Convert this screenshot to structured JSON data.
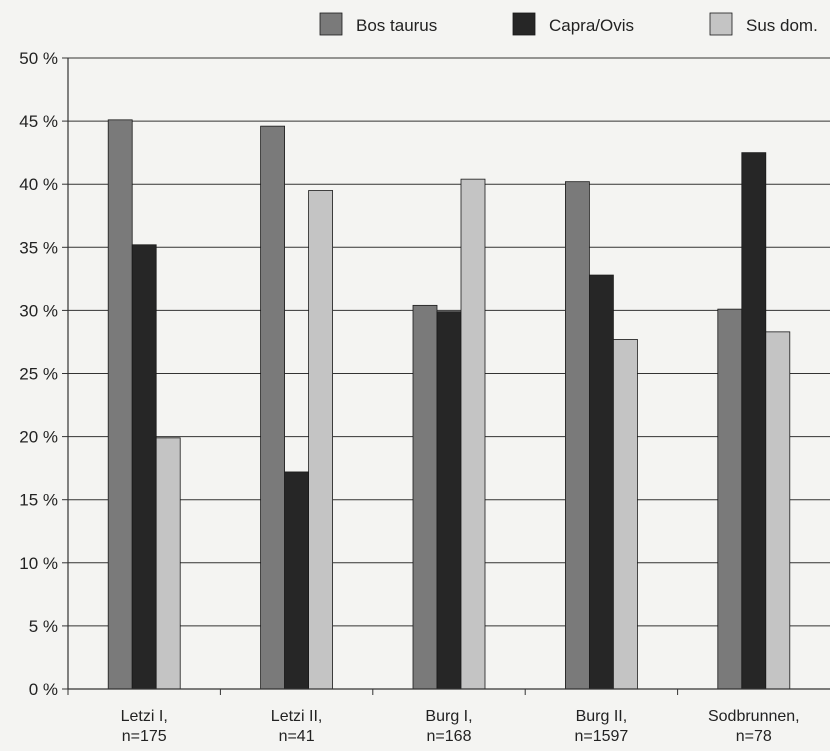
{
  "chart_data": {
    "type": "bar",
    "categories": [
      [
        "Letzi I,",
        "n=175"
      ],
      [
        "Letzi II,",
        "n=41"
      ],
      [
        "Burg I,",
        "n=168"
      ],
      [
        "Burg II,",
        "n=1597"
      ],
      [
        "Sodbrunnen,",
        "n=78"
      ]
    ],
    "series": [
      {
        "name": "Bos taurus",
        "color": "#7a7a7a",
        "values": [
          45.1,
          44.6,
          30.4,
          40.2,
          30.1
        ]
      },
      {
        "name": "Capra/Ovis",
        "color": "#262626",
        "values": [
          35.2,
          17.2,
          29.9,
          32.8,
          42.5
        ]
      },
      {
        "name": "Sus dom.",
        "color": "#c4c4c4",
        "values": [
          19.9,
          39.5,
          40.4,
          27.7,
          28.3
        ]
      }
    ],
    "ylim": [
      0,
      50
    ],
    "yticks": [
      0,
      5,
      10,
      15,
      20,
      25,
      30,
      35,
      40,
      45,
      50
    ],
    "ytick_labels": [
      "0 %",
      "5 %",
      "10 %",
      "15 %",
      "20 %",
      "25 %",
      "30 %",
      "35 %",
      "40 %",
      "45 %",
      "50 %"
    ],
    "grid": true,
    "legend": "top-right"
  }
}
